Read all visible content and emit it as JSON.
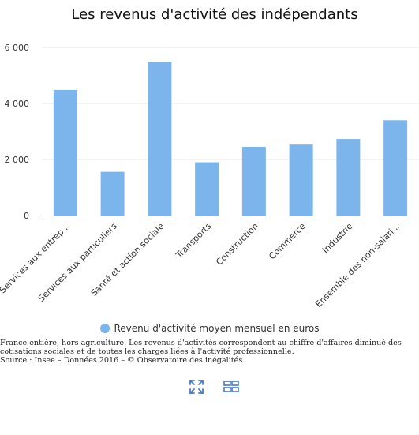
{
  "chart_data": {
    "type": "bar",
    "title": "Les revenus d'activité des indépendants",
    "categories": [
      "Services aux entrep...",
      "Services aux particuliers",
      "Santé et action sociale",
      "Transports",
      "Construction",
      "Commerce",
      "Industrie",
      "Ensemble des non-salari..."
    ],
    "series": [
      {
        "name": "Revenu d'activité moyen mensuel en euros",
        "values": [
          4480,
          1560,
          5480,
          1900,
          2450,
          2530,
          2730,
          3400
        ],
        "color": "#7cb5ec"
      }
    ],
    "ylim": [
      0,
      6000
    ],
    "yticks": [
      0,
      2000,
      4000,
      6000
    ],
    "ytick_labels": [
      "0",
      "2 000",
      "4 000",
      "6 000"
    ],
    "xlabel": "",
    "ylabel": "",
    "grid": true,
    "legend_position": "bottom-center"
  },
  "caption": {
    "line1": "France entière, hors agriculture. Les revenus d'activités correspondent au chiffre d'affaires diminué des",
    "line2": "cotisations sociales et de toutes les charges liées à l'activité professionnelle.",
    "line3": "Source : Insee – Données 2016 – © Observatoire des inégalités"
  },
  "toolbar": {
    "fullscreen_icon": "expand-icon",
    "view_icon": "grid-view-icon",
    "accent_color": "#4a78c9"
  }
}
